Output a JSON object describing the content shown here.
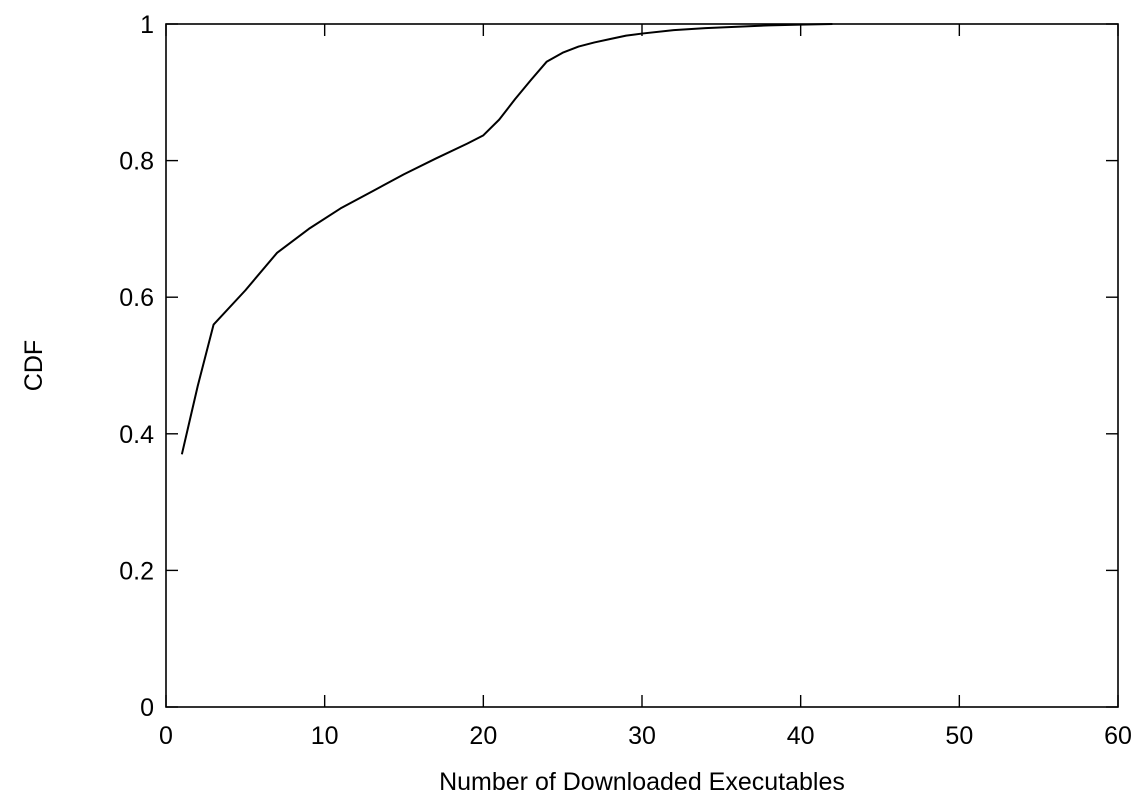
{
  "chart_data": {
    "type": "line",
    "title": "",
    "xlabel": "Number of Downloaded Executables",
    "ylabel": "CDF",
    "xlim": [
      0,
      60
    ],
    "ylim": [
      0,
      1
    ],
    "x_ticks": [
      0,
      10,
      20,
      30,
      40,
      50,
      60
    ],
    "y_ticks": [
      0,
      0.2,
      0.4,
      0.6,
      0.8,
      1
    ],
    "x_tick_labels": [
      "0",
      "10",
      "20",
      "30",
      "40",
      "50",
      "60"
    ],
    "y_tick_labels": [
      "0",
      "0.2",
      "0.4",
      "0.6",
      "0.8",
      "1"
    ],
    "grid": false,
    "legend": "none",
    "series": [
      {
        "color": "#000000",
        "x": [
          1,
          1.5,
          2,
          3,
          5,
          7,
          9,
          11,
          13,
          15,
          17,
          19,
          20,
          21,
          22,
          23,
          24,
          25,
          26,
          27,
          28,
          29,
          30,
          32,
          34,
          36,
          38,
          40,
          42
        ],
        "y": [
          0.37,
          0.42,
          0.47,
          0.56,
          0.61,
          0.665,
          0.7,
          0.73,
          0.755,
          0.78,
          0.803,
          0.825,
          0.837,
          0.86,
          0.89,
          0.918,
          0.945,
          0.958,
          0.967,
          0.973,
          0.978,
          0.983,
          0.986,
          0.991,
          0.994,
          0.996,
          0.998,
          0.999,
          1.0
        ]
      }
    ]
  }
}
